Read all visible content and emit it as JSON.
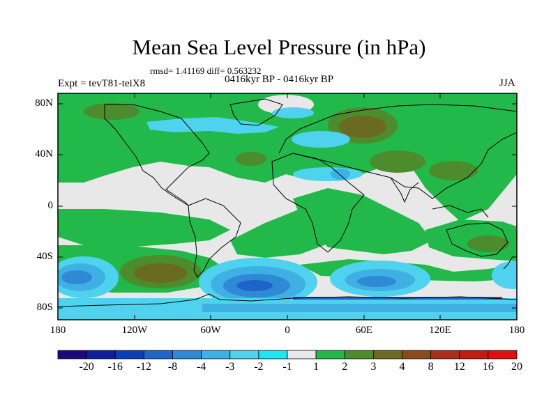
{
  "title": "Mean Sea Level Pressure (in hPa)",
  "stats": "rmsd= 1.41169  diff= 0.563232",
  "period": "0416kyr BP - 0416kyr BP",
  "experiment": "Expt = tevT81-teiX8",
  "season": "JJA",
  "lat_labels": [
    "80N",
    "40N",
    "0",
    "40S",
    "80S"
  ],
  "lon_labels": [
    "180",
    "120W",
    "60W",
    "0",
    "60E",
    "120E",
    "180"
  ],
  "colorbar": {
    "labels": [
      "-20",
      "-16",
      "-12",
      "-8",
      "-4",
      "-3",
      "-2",
      "-1",
      "1",
      "2",
      "3",
      "4",
      "8",
      "12",
      "16",
      "20"
    ],
    "colors": [
      "#1a0a7a",
      "#0d1f9a",
      "#0a3fb8",
      "#1f64c8",
      "#2f8ad6",
      "#3fb0e4",
      "#4fd2ee",
      "#1ee6ee",
      "#e8e8e8",
      "#22b84a",
      "#4c8c2c",
      "#6b6a22",
      "#8a4a1e",
      "#a8301a",
      "#c21c12",
      "#e01010"
    ]
  },
  "map_colors": {
    "neutral": "#e8e8e8",
    "pos2": "#22b84a",
    "pos3": "#4c8c2c",
    "pos4": "#6b6a22",
    "pos8": "#8a4a1e",
    "neg2": "#4fd2ee",
    "neg3": "#3fb0e4",
    "neg4": "#2f8ad6",
    "neg8": "#1f64c8",
    "neg12": "#0a3fb8"
  }
}
